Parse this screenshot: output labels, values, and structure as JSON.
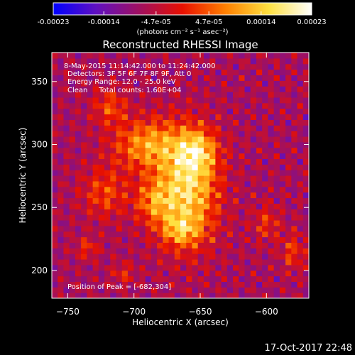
{
  "colorbar": {
    "tick_labels": [
      "-0.00023",
      "-0.00014",
      "-4.7e-05",
      "4.7e-05",
      "0.00014",
      "0.00023"
    ],
    "tick_values": [
      -0.00023,
      -0.00014,
      -4.7e-05,
      4.7e-05,
      0.00014,
      0.00023
    ],
    "range": [
      -0.00023,
      0.00023
    ],
    "units": "(photons cm⁻² s⁻¹ asec⁻²)",
    "stops": [
      "#0000ff",
      "#6010c0",
      "#a01060",
      "#e81000",
      "#ff8000",
      "#ffe040",
      "#ffffff"
    ]
  },
  "title": "Reconstructed RHESSI Image",
  "info_lines": [
    "8-May-2015 11:14:42.000 to 11:24:42.000",
    "Detectors: 3F 5F 6F 7F 8F 9F, Att 0",
    "Energy Range: 12.0 - 25.0 keV",
    "Clean     Total counts: 1.60E+04"
  ],
  "peak_label": "Position of Peak = [-682,304]",
  "timestamp": "17-Oct-2017 22:48",
  "chart_data": {
    "type": "heatmap",
    "title": "Reconstructed RHESSI Image",
    "xlabel": "Heliocentric X (arcsec)",
    "ylabel": "Heliocentric Y (arcsec)",
    "xlim": [
      -762,
      -568
    ],
    "ylim": [
      178,
      373
    ],
    "xticks": [
      -750,
      -700,
      -650,
      -600
    ],
    "yticks": [
      200,
      250,
      300,
      350
    ],
    "peak": {
      "x": -682,
      "y": 304
    },
    "emission_blobs": [
      {
        "x": -660,
        "y": 265,
        "sx": 16,
        "sy": 30,
        "a": 0.00023
      },
      {
        "x": -690,
        "y": 300,
        "sx": 18,
        "sy": 14,
        "a": 0.00016
      },
      {
        "x": -652,
        "y": 295,
        "sx": 10,
        "sy": 12,
        "a": 0.00014
      },
      {
        "x": -685,
        "y": 255,
        "sx": 10,
        "sy": 12,
        "a": 0.00012
      },
      {
        "x": -665,
        "y": 232,
        "sx": 10,
        "sy": 8,
        "a": 0.00011
      },
      {
        "x": -722,
        "y": 262,
        "sx": 12,
        "sy": 14,
        "a": 0.0001
      },
      {
        "x": -718,
        "y": 330,
        "sx": 9,
        "sy": 10,
        "a": 0.0001
      },
      {
        "x": -600,
        "y": 238,
        "sx": 7,
        "sy": 10,
        "a": 8e-05
      },
      {
        "x": -580,
        "y": 215,
        "sx": 6,
        "sy": 10,
        "a": 9e-05
      },
      {
        "x": -735,
        "y": 218,
        "sx": 6,
        "sy": 6,
        "a": 8e-05
      },
      {
        "x": -708,
        "y": 198,
        "sx": 6,
        "sy": 6,
        "a": 7e-05
      }
    ]
  }
}
